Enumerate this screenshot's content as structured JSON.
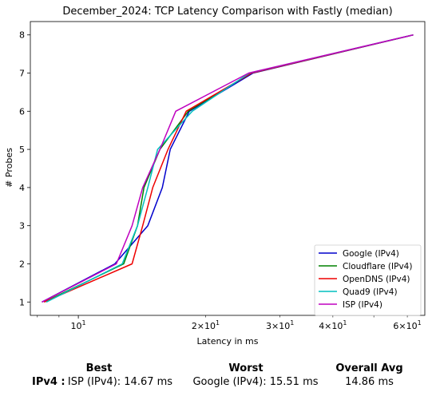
{
  "chart_data": {
    "type": "line",
    "title": "December_2024: TCP Latency Comparison with Fastly (median)",
    "xlabel": "Latency in ms",
    "ylabel": "# Probes",
    "xscale": "log",
    "xlim": [
      7.7,
      66
    ],
    "ylim": [
      0.65,
      8.35
    ],
    "yticks": [
      1,
      2,
      3,
      4,
      5,
      6,
      7,
      8
    ],
    "xticks_major": [
      {
        "value": 10,
        "label": "10"
      }
    ],
    "xticks_minor": [
      {
        "value": 20,
        "label": "2×10"
      },
      {
        "value": 30,
        "label": "3×10"
      },
      {
        "value": 40,
        "label": "4×10"
      },
      {
        "value": 60,
        "label": "6×10"
      }
    ],
    "grid": false,
    "legend_position": "lower-right",
    "series": [
      {
        "name": "Google (IPv4)",
        "color": "#0000cc",
        "x": [
          8.2,
          12.2,
          14.6,
          15.8,
          16.5,
          18.3,
          25.9,
          62.0
        ],
        "y": [
          1,
          2,
          3,
          4,
          5,
          6,
          7,
          8
        ]
      },
      {
        "name": "Cloudflare (IPv4)",
        "color": "#008000",
        "x": [
          8.3,
          12.8,
          13.8,
          14.3,
          15.6,
          18.2,
          25.6,
          62.0
        ],
        "y": [
          1,
          2,
          3,
          4,
          5,
          6,
          7,
          8
        ]
      },
      {
        "name": "OpenDNS (IPv4)",
        "color": "#ee0000",
        "x": [
          8.3,
          13.4,
          14.2,
          15.0,
          16.3,
          18.0,
          25.7,
          62.0
        ],
        "y": [
          1,
          2,
          3,
          4,
          5,
          6,
          7,
          8
        ]
      },
      {
        "name": "Quad9 (IPv4)",
        "color": "#00bfbf",
        "x": [
          8.4,
          12.7,
          13.8,
          14.6,
          15.4,
          18.6,
          25.4,
          62.0
        ],
        "y": [
          1,
          2,
          3,
          4,
          5,
          6,
          7,
          8
        ]
      },
      {
        "name": "ISP (IPv4)",
        "color": "#bf00bf",
        "x": [
          8.2,
          12.3,
          13.4,
          14.2,
          15.6,
          17.0,
          25.3,
          62.0
        ],
        "y": [
          1,
          2,
          3,
          4,
          5,
          6,
          7,
          8
        ]
      }
    ]
  },
  "summary": {
    "best_header": "Best",
    "worst_header": "Worst",
    "avg_header": "Overall Avg",
    "row_label": "IPv4 :",
    "best_value": "ISP (IPv4): 14.67 ms",
    "worst_value": "Google (IPv4): 15.51 ms",
    "avg_value": "14.86 ms"
  }
}
